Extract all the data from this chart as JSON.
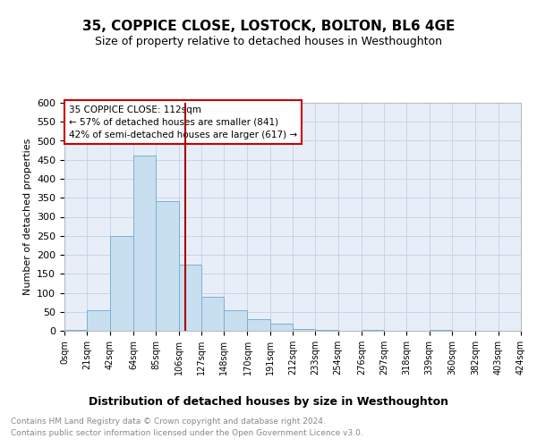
{
  "title": "35, COPPICE CLOSE, LOSTOCK, BOLTON, BL6 4GE",
  "subtitle": "Size of property relative to detached houses in Westhoughton",
  "xlabel": "Distribution of detached houses by size in Westhoughton",
  "ylabel": "Number of detached properties",
  "footnote1": "Contains HM Land Registry data © Crown copyright and database right 2024.",
  "footnote2": "Contains public sector information licensed under the Open Government Licence v3.0.",
  "annotation_title": "35 COPPICE CLOSE: 112sqm",
  "annotation_line1": "← 57% of detached houses are smaller (841)",
  "annotation_line2": "42% of semi-detached houses are larger (617) →",
  "property_size_sqm": 112,
  "bar_labels": [
    "0sqm",
    "21sqm",
    "42sqm",
    "64sqm",
    "85sqm",
    "106sqm",
    "127sqm",
    "148sqm",
    "170sqm",
    "191sqm",
    "212sqm",
    "233sqm",
    "254sqm",
    "276sqm",
    "297sqm",
    "318sqm",
    "339sqm",
    "360sqm",
    "382sqm",
    "403sqm",
    "424sqm"
  ],
  "bar_edges": [
    0,
    21,
    42,
    64,
    85,
    106,
    127,
    148,
    170,
    191,
    212,
    233,
    254,
    276,
    297,
    318,
    339,
    360,
    382,
    403,
    424
  ],
  "bar_values": [
    2,
    55,
    250,
    460,
    340,
    175,
    90,
    55,
    30,
    18,
    5,
    2,
    0,
    2,
    0,
    0,
    2,
    0,
    0,
    0,
    2
  ],
  "ylim": [
    0,
    600
  ],
  "yticks": [
    0,
    50,
    100,
    150,
    200,
    250,
    300,
    350,
    400,
    450,
    500,
    550,
    600
  ],
  "bar_color": "#c8dff0",
  "bar_edge_color": "#7ab0d0",
  "property_line_color": "#aa0000",
  "annotation_box_color": "#ffffff",
  "annotation_box_edge": "#cc0000",
  "grid_color": "#c8d4e8",
  "background_color": "#e8eef8"
}
